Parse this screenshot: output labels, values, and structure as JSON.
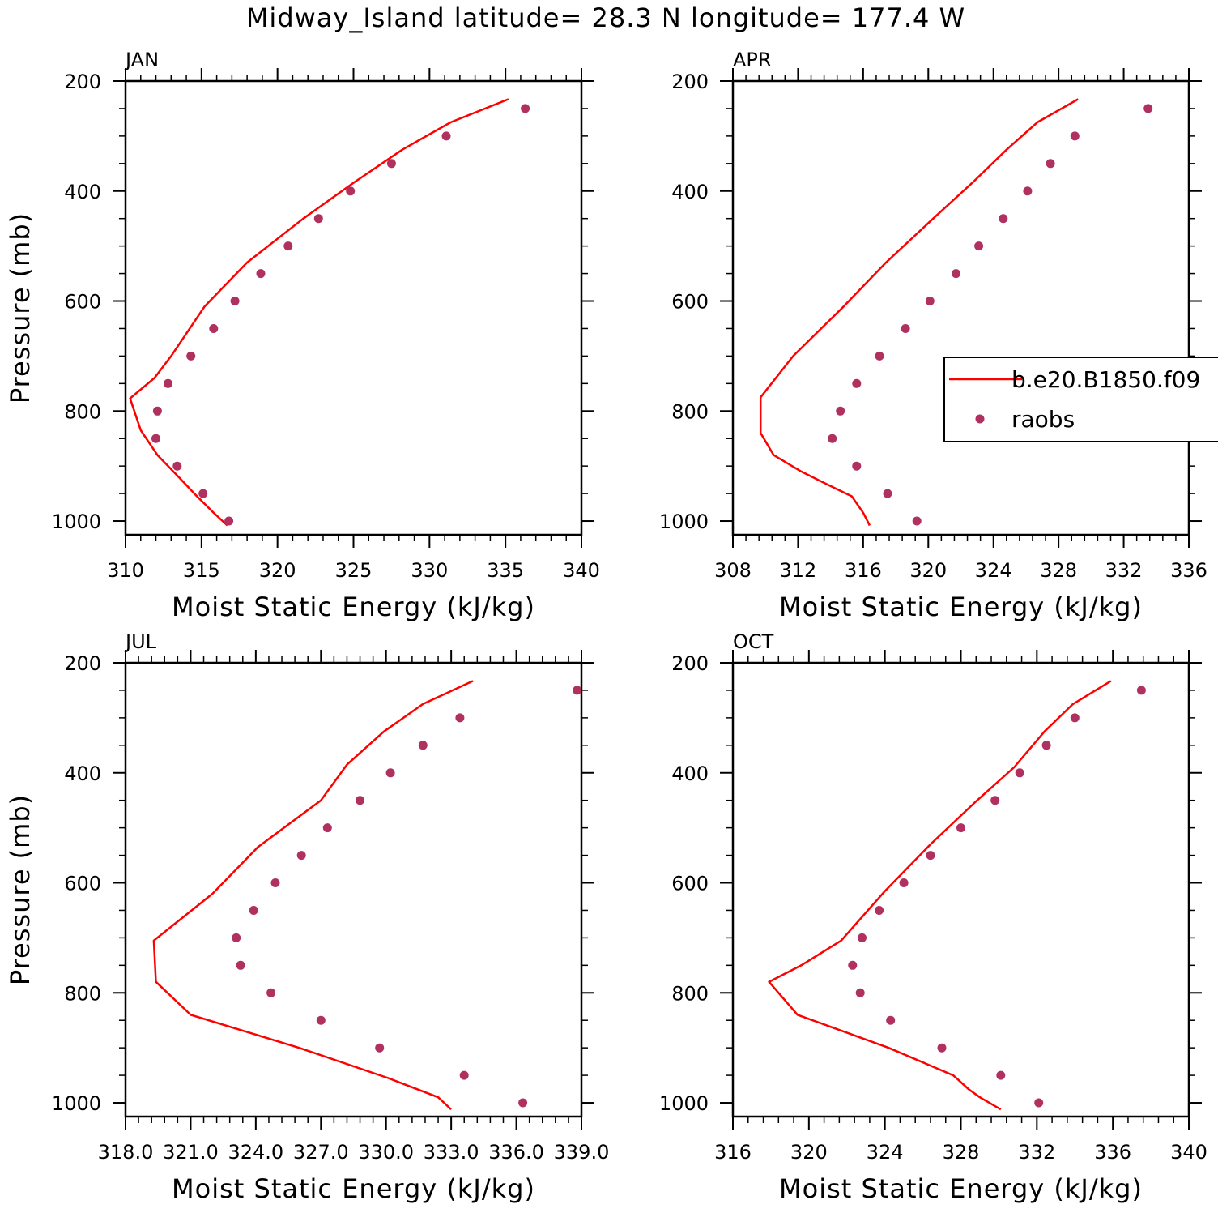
{
  "title": "Midway_Island  latitude= 28.3 N longitude= 177.4 W",
  "legend": {
    "model_label": "b.e20.B1850.f09",
    "obs_label": "raobs",
    "model_color": "#ff0000",
    "obs_color": "#b03060"
  },
  "chart_data": [
    {
      "type": "line",
      "panel_label": "JAN",
      "xlabel": "Moist Static Energy (kJ/kg)",
      "ylabel": "Pressure (mb)",
      "xlim": [
        310,
        340
      ],
      "ylim": [
        1025,
        200
      ],
      "xticks": [
        310,
        315,
        320,
        325,
        330,
        335,
        340
      ],
      "xtick_labels": [
        "310",
        "315",
        "320",
        "325",
        "330",
        "335",
        "340"
      ],
      "yticks": [
        200,
        400,
        600,
        800,
        1000
      ],
      "ytick_labels": [
        "200",
        "400",
        "600",
        "800",
        "1000"
      ],
      "series": [
        {
          "name": "b.e20.B1850.f09",
          "kind": "line",
          "x": [
            335.2,
            331.4,
            328.2,
            325.0,
            321.7,
            318.0,
            315.2,
            313.0,
            311.9,
            310.3,
            311.0,
            312.1,
            313.5,
            314.7,
            315.8,
            316.7
          ],
          "y": [
            233,
            275,
            325,
            385,
            450,
            530,
            610,
            700,
            740,
            777,
            835,
            880,
            920,
            955,
            985,
            1008
          ]
        },
        {
          "name": "raobs",
          "kind": "scatter",
          "x": [
            336.3,
            331.1,
            327.5,
            324.8,
            322.7,
            320.7,
            318.9,
            317.2,
            315.8,
            314.3,
            312.8,
            312.1,
            312.0,
            313.4,
            315.1,
            316.8
          ],
          "y": [
            250,
            300,
            350,
            400,
            450,
            500,
            550,
            600,
            650,
            700,
            750,
            800,
            850,
            900,
            950,
            1000
          ]
        }
      ]
    },
    {
      "type": "line",
      "panel_label": "APR",
      "xlabel": "Moist Static Energy (kJ/kg)",
      "ylabel": "",
      "xlim": [
        308,
        336
      ],
      "ylim": [
        1025,
        200
      ],
      "xticks": [
        308,
        312,
        316,
        320,
        324,
        328,
        332,
        336
      ],
      "xtick_labels": [
        "308",
        "312",
        "316",
        "320",
        "324",
        "328",
        "332",
        "336"
      ],
      "yticks": [
        200,
        400,
        600,
        800,
        1000
      ],
      "ytick_labels": [
        "200",
        "400",
        "600",
        "800",
        "1000"
      ],
      "series": [
        {
          "name": "b.e20.B1850.f09",
          "kind": "line",
          "x": [
            329.2,
            326.7,
            324.8,
            322.7,
            320.3,
            317.4,
            314.8,
            311.7,
            309.7,
            309.7,
            310.5,
            312.2,
            313.9,
            315.3,
            316.0,
            316.4
          ],
          "y": [
            233,
            275,
            325,
            385,
            450,
            530,
            610,
            700,
            775,
            840,
            880,
            910,
            935,
            955,
            985,
            1008
          ]
        },
        {
          "name": "raobs",
          "kind": "scatter",
          "x": [
            333.5,
            329.0,
            327.5,
            326.1,
            324.6,
            323.1,
            321.7,
            320.1,
            318.6,
            317.0,
            315.6,
            314.6,
            314.1,
            315.6,
            317.5,
            319.3
          ],
          "y": [
            250,
            300,
            350,
            400,
            450,
            500,
            550,
            600,
            650,
            700,
            750,
            800,
            850,
            900,
            950,
            1000
          ]
        }
      ]
    },
    {
      "type": "line",
      "panel_label": "JUL",
      "xlabel": "Moist Static Energy (kJ/kg)",
      "ylabel": "Pressure (mb)",
      "xlim": [
        318.0,
        339.0
      ],
      "ylim": [
        1025,
        200
      ],
      "xticks": [
        318,
        321,
        324,
        327,
        330,
        333,
        336,
        339
      ],
      "xtick_labels": [
        "318.0",
        "321.0",
        "324.0",
        "327.0",
        "330.0",
        "333.0",
        "336.0",
        "339.0"
      ],
      "yticks": [
        200,
        400,
        600,
        800,
        1000
      ],
      "ytick_labels": [
        "200",
        "400",
        "600",
        "800",
        "1000"
      ],
      "series": [
        {
          "name": "b.e20.B1850.f09",
          "kind": "line",
          "x": [
            334.0,
            331.7,
            329.9,
            328.2,
            327.0,
            324.1,
            322.0,
            319.3,
            319.4,
            321.0,
            326.0,
            330.1,
            332.4,
            333.0
          ],
          "y": [
            233,
            275,
            325,
            385,
            450,
            535,
            620,
            705,
            780,
            840,
            900,
            955,
            990,
            1012
          ]
        },
        {
          "name": "raobs",
          "kind": "scatter",
          "x": [
            338.8,
            333.4,
            331.7,
            330.2,
            328.8,
            327.3,
            326.1,
            324.9,
            323.9,
            323.1,
            323.3,
            324.7,
            327.0,
            329.7,
            333.6,
            336.3
          ],
          "y": [
            250,
            300,
            350,
            400,
            450,
            500,
            550,
            600,
            650,
            700,
            750,
            800,
            850,
            900,
            950,
            1000
          ]
        }
      ]
    },
    {
      "type": "line",
      "panel_label": "OCT",
      "xlabel": "Moist Static Energy (kJ/kg)",
      "ylabel": "",
      "xlim": [
        316,
        340
      ],
      "ylim": [
        1025,
        200
      ],
      "xticks": [
        316,
        320,
        324,
        328,
        332,
        336,
        340
      ],
      "xtick_labels": [
        "316",
        "320",
        "324",
        "328",
        "332",
        "336",
        "340"
      ],
      "yticks": [
        200,
        400,
        600,
        800,
        1000
      ],
      "ytick_labels": [
        "200",
        "400",
        "600",
        "800",
        "1000"
      ],
      "series": [
        {
          "name": "b.e20.B1850.f09",
          "kind": "line",
          "x": [
            335.9,
            333.9,
            332.4,
            330.8,
            328.7,
            326.4,
            324.0,
            321.7,
            319.6,
            317.9,
            319.4,
            324.2,
            327.6,
            328.4,
            329.0,
            330.1
          ],
          "y": [
            233,
            275,
            325,
            390,
            455,
            530,
            615,
            705,
            750,
            780,
            840,
            900,
            950,
            975,
            990,
            1012
          ]
        },
        {
          "name": "raobs",
          "kind": "scatter",
          "x": [
            337.5,
            334.0,
            332.5,
            331.1,
            329.8,
            328.0,
            326.4,
            325.0,
            323.7,
            322.8,
            322.3,
            322.7,
            324.3,
            327.0,
            330.1,
            332.1
          ],
          "y": [
            250,
            300,
            350,
            400,
            450,
            500,
            550,
            600,
            650,
            700,
            750,
            800,
            850,
            900,
            950,
            1000
          ]
        }
      ]
    }
  ]
}
